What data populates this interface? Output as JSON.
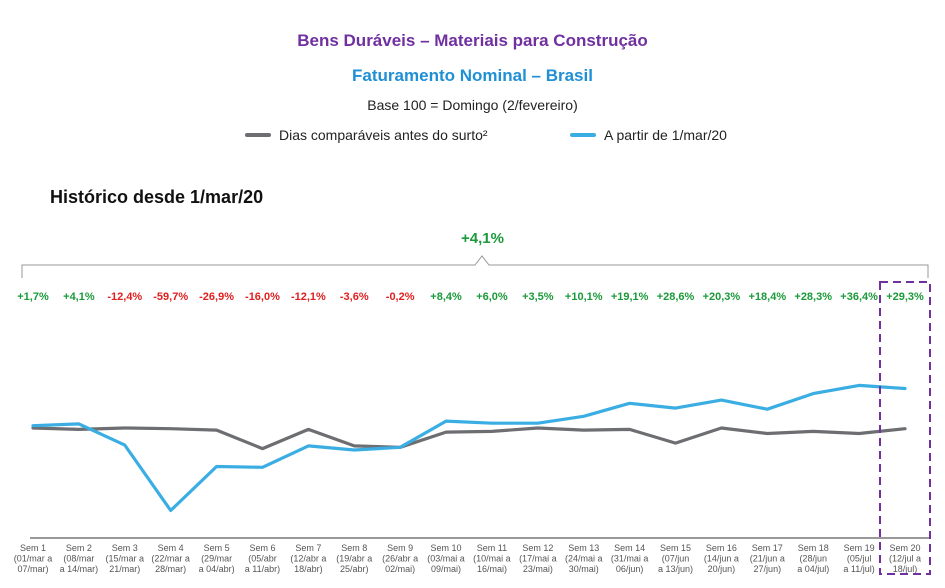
{
  "header": {
    "title": "Bens Duráveis – Materiais para Construção",
    "subtitle": "Faturamento Nominal – Brasil",
    "base_note": "Base 100 = Domingo (2/fevereiro)"
  },
  "legend": {
    "series_1": "Dias comparáveis antes do surto²",
    "series_2": "A partir de 1/mar/20"
  },
  "section_title": "Histórico desde 1/mar/20",
  "total_change": "+4,1%",
  "colors": {
    "comparable": "#6d6e71",
    "current": "#3aaee3",
    "positive": "#1a9a3a",
    "negative": "#e02020",
    "highlight": "#7030a0"
  },
  "chart_data": {
    "type": "line",
    "categories": [
      "Sem 1 (01/mar a 07/mar)",
      "Sem 2 (08/mar a 14/mar)",
      "Sem 3 (15/mar a 21/mar)",
      "Sem 4 (22/mar a 28/mar)",
      "Sem 5 (29/mar a 04/abr)",
      "Sem 6 (05/abr a 11/abr)",
      "Sem 7 (12/abr a 18/abr)",
      "Sem 8 (19/abr a 25/abr)",
      "Sem 9 (26/abr a 02/mai)",
      "Sem 10 (03/mai a 09/mai)",
      "Sem 11 (10/mai a 16/mai)",
      "Sem 12 (17/mai a 23/mai)",
      "Sem 13 (24/mai a 30/mai)",
      "Sem 14 (31/mai a 06/jun)",
      "Sem 15 (07/jun a 13/jun)",
      "Sem 16 (14/jun a 20/jun)",
      "Sem 17 (21/jun a 27/jun)",
      "Sem 18 (28/jun a 04/jul)",
      "Sem 19 (05/jul a 11/jul)",
      "Sem 20 (12/jul a 18/jul)"
    ],
    "tick_lines": [
      [
        "Sem 1",
        "(01/mar a",
        "07/mar)"
      ],
      [
        "Sem 2",
        "(08/mar",
        "a 14/mar)"
      ],
      [
        "Sem 3",
        "(15/mar a",
        "21/mar)"
      ],
      [
        "Sem 4",
        "(22/mar a",
        "28/mar)"
      ],
      [
        "Sem 5",
        "(29/mar",
        "a 04/abr)"
      ],
      [
        "Sem 6",
        "(05/abr",
        "a 11/abr)"
      ],
      [
        "Sem 7",
        "(12/abr a",
        "18/abr)"
      ],
      [
        "Sem 8",
        "(19/abr a",
        "25/abr)"
      ],
      [
        "Sem 9",
        "(26/abr a",
        "02/mai)"
      ],
      [
        "Sem 10",
        "(03/mai a",
        "09/mai)"
      ],
      [
        "Sem 11",
        "(10/mai a",
        "16/mai)"
      ],
      [
        "Sem 12",
        "(17/mai a",
        "23/mai)"
      ],
      [
        "Sem 13",
        "(24/mai a",
        "30/mai)"
      ],
      [
        "Sem 14",
        "(31/mai a",
        "06/jun)"
      ],
      [
        "Sem 15",
        "(07/jun",
        "a 13/jun)"
      ],
      [
        "Sem 16",
        "(14/jun a",
        "20/jun)"
      ],
      [
        "Sem 17",
        "(21/jun a",
        "27/jun)"
      ],
      [
        "Sem 18",
        "(28/jun",
        "a 04/jul)"
      ],
      [
        "Sem 19",
        "(05/jul",
        "a 11/jul)"
      ],
      [
        "Sem 20",
        "(12/jul a",
        "18/jul)"
      ]
    ],
    "weekly_change": [
      "+1,7%",
      "+4,1%",
      "-12,4%",
      "-59,7%",
      "-26,9%",
      "-16,0%",
      "-12,1%",
      "-3,6%",
      "-0,2%",
      "+8,4%",
      "+6,0%",
      "+3,5%",
      "+10,1%",
      "+19,1%",
      "+28,6%",
      "+20,3%",
      "+18,4%",
      "+28,3%",
      "+36,4%",
      "+29,3%"
    ],
    "series": [
      {
        "name": "Dias comparáveis antes do surto²",
        "color": "#6d6e71",
        "values": [
          100,
          99,
          100,
          99.5,
          98.5,
          85,
          99,
          87,
          86,
          97,
          97.5,
          100,
          98.5,
          99,
          89,
          100,
          96,
          97.5,
          96,
          99.5
        ]
      },
      {
        "name": "A partir de 1/mar/20",
        "color": "#3aaee3",
        "values": [
          101.7,
          103,
          87.6,
          40,
          72,
          71.4,
          87,
          84,
          86,
          105,
          103.5,
          103.5,
          108.5,
          118,
          114.5,
          120.3,
          113.7,
          125,
          131,
          128.7
        ]
      }
    ],
    "ylim": [
      20,
      180
    ],
    "highlight_category": "Sem 20 (12/jul a 18/jul)"
  }
}
